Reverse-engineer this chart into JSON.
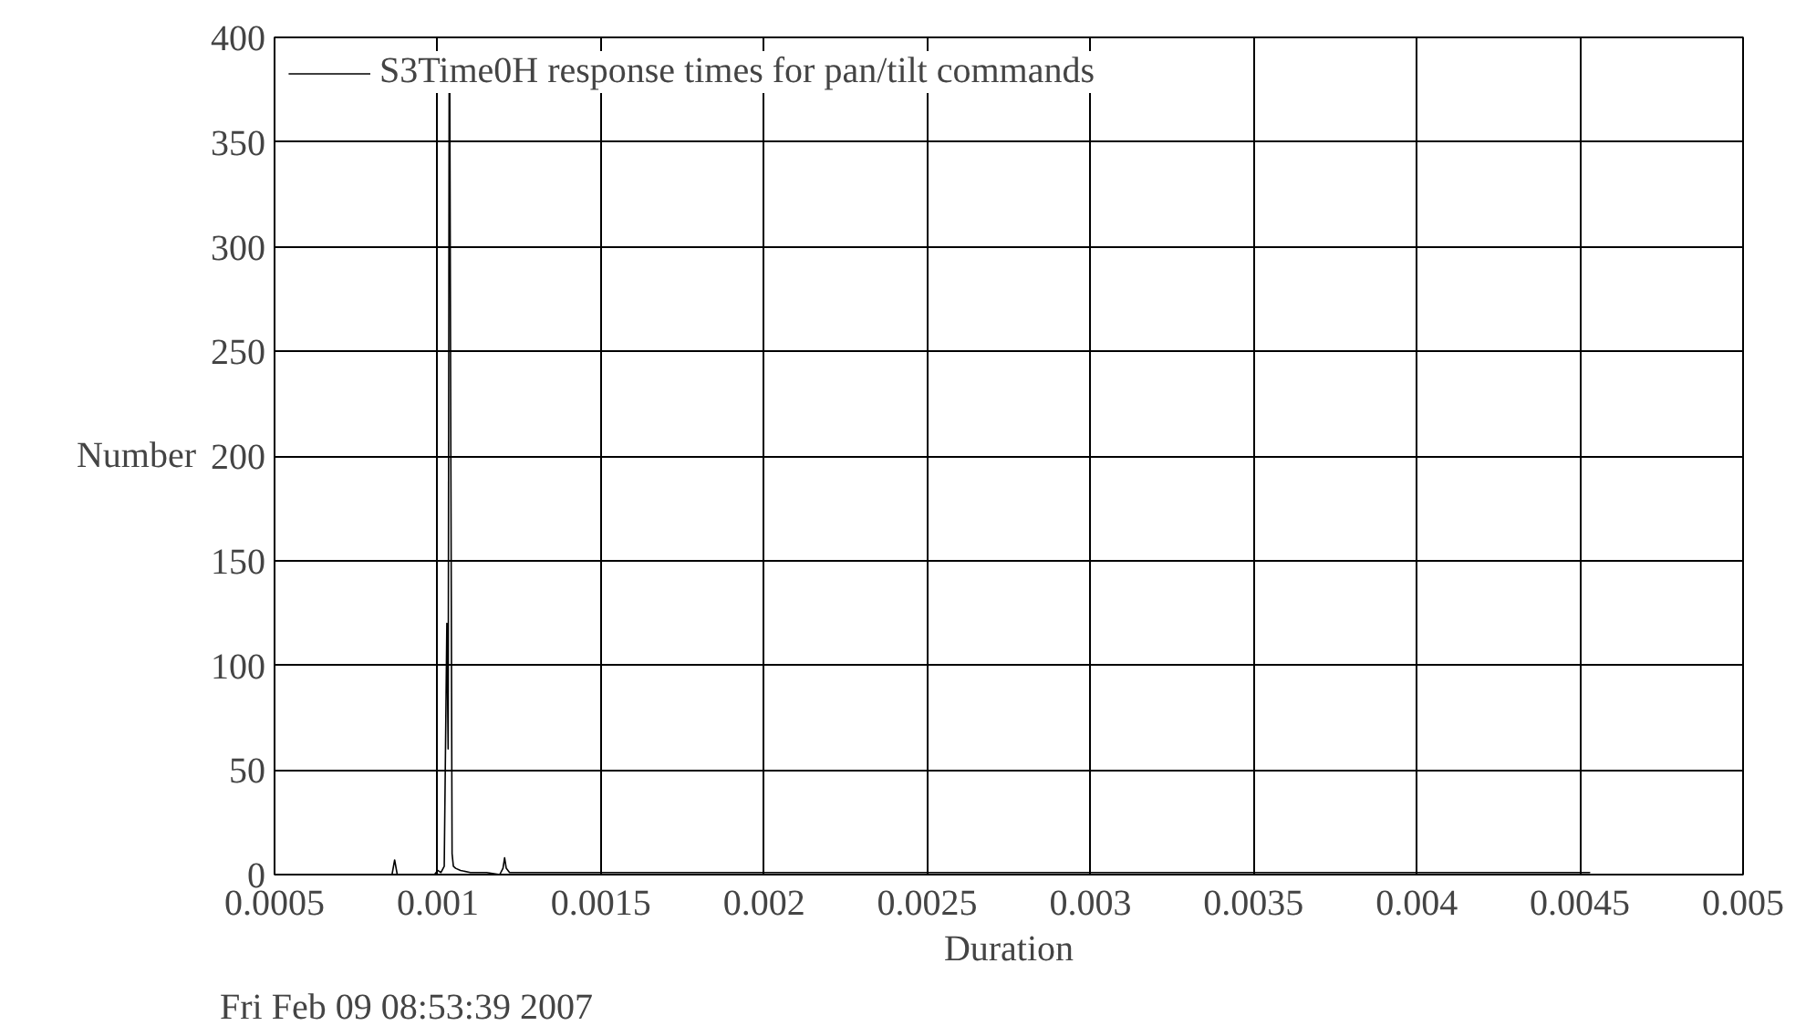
{
  "chart_data": {
    "type": "line",
    "xlabel": "Duration",
    "ylabel": "Number",
    "annotations": [
      "Fri Feb 09 08:53:39 2007"
    ],
    "series": [
      {
        "name": "S3Time0H response times for pan/tilt commands",
        "color": "#000000",
        "x": [
          0.00082,
          0.00086,
          0.000868,
          0.000876,
          0.00095,
          0.00099,
          0.001,
          0.00101,
          0.00102,
          0.001028,
          0.001032,
          0.001035,
          0.001037,
          0.00104,
          0.001044,
          0.001048,
          0.001055,
          0.00107,
          0.0011,
          0.00115,
          0.00119,
          0.0012,
          0.001205,
          0.00121,
          0.00122,
          0.0013,
          0.002,
          0.003,
          0.004,
          0.00453
        ],
        "values": [
          0,
          0,
          7,
          0,
          0,
          0,
          2,
          1,
          4,
          120,
          60,
          375,
          375,
          213,
          10,
          4,
          3,
          2,
          1,
          1,
          0,
          3,
          8,
          3,
          1,
          1,
          1,
          1,
          1,
          1
        ]
      }
    ],
    "xlim": [
      0.0005,
      0.005
    ],
    "xticks": [
      0.0005,
      0.001,
      0.0015,
      0.002,
      0.0025,
      0.003,
      0.0035,
      0.004,
      0.0045,
      0.005
    ],
    "ylim": [
      0,
      400
    ],
    "yticks": [
      0,
      50,
      100,
      150,
      200,
      250,
      300,
      350,
      400
    ],
    "grid": true,
    "legend": "top left",
    "line_style": "solid",
    "marker": "none"
  }
}
